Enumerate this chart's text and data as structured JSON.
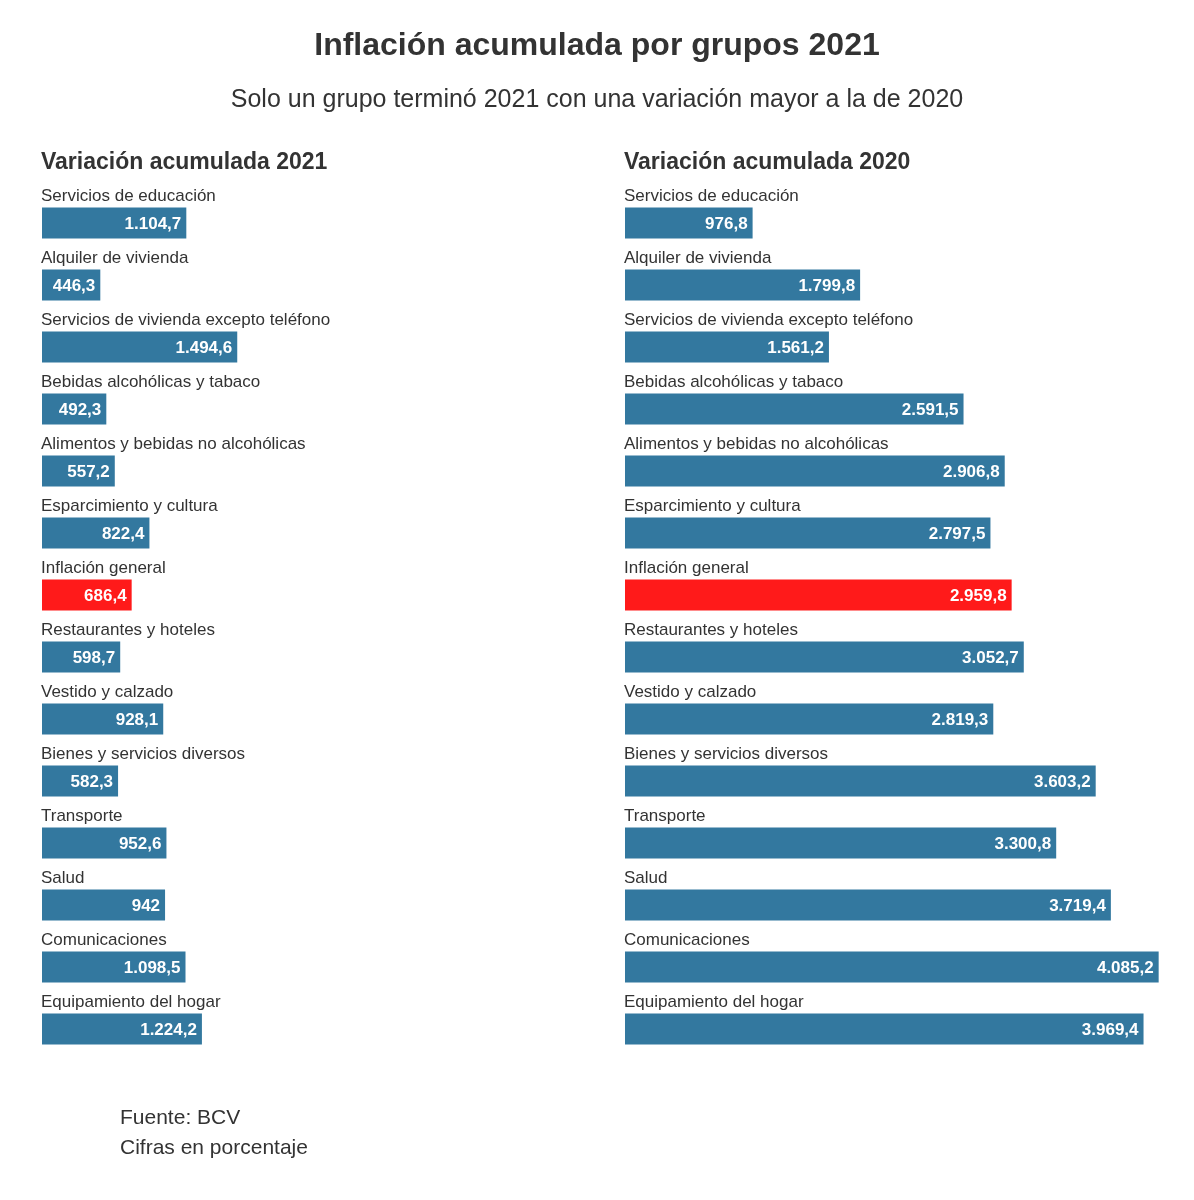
{
  "chart_data": [
    {
      "type": "other",
      "title": "Inflación acumulada por grupos 2021",
      "subtitle": "Solo un grupo terminó 2021 con una variación mayor a la de 2020",
      "annotations": [
        "Fuente: BCV",
        "Cifras en porcentaje"
      ]
    },
    {
      "type": "bar",
      "orientation": "horizontal",
      "title": "Variación acumulada 2021",
      "value_labels": [
        "1.104,7",
        "446,3",
        "1.494,6",
        "492,3",
        "557,2",
        "822,4",
        "686,4",
        "598,7",
        "928,1",
        "582,3",
        "952,6",
        "942",
        "1.098,5",
        "1.224,2"
      ],
      "categories": [
        "Servicios de educación",
        "Alquiler de vivienda",
        "Servicios de vivienda excepto teléfono",
        "Bebidas alcohólicas y tabaco",
        "Alimentos y bebidas no alcohólicas",
        "Esparcimiento y cultura",
        "Inflación general",
        "Restaurantes y hoteles",
        "Vestido y calzado",
        "Bienes y servicios diversos",
        "Transporte",
        "Salud",
        "Comunicaciones",
        "Equipamiento del hogar"
      ],
      "values": [
        1104.7,
        446.3,
        1494.6,
        492.3,
        557.2,
        822.4,
        686.4,
        598.7,
        928.1,
        582.3,
        952.6,
        942,
        1098.5,
        1224.2
      ],
      "colors": [
        "#33789f",
        "#33789f",
        "#33789f",
        "#33789f",
        "#33789f",
        "#33789f",
        "#ff1a1a",
        "#33789f",
        "#33789f",
        "#33789f",
        "#33789f",
        "#33789f",
        "#33789f",
        "#33789f"
      ]
    },
    {
      "type": "bar",
      "orientation": "horizontal",
      "title": "Variación acumulada 2020",
      "value_labels": [
        "976,8",
        "1.799,8",
        "1.561,2",
        "2.591,5",
        "2.906,8",
        "2.797,5",
        "2.959,8",
        "3.052,7",
        "2.819,3",
        "3.603,2",
        "3.300,8",
        "3.719,4",
        "4.085,2",
        "3.969,4"
      ],
      "categories": [
        "Servicios de educación",
        "Alquiler de vivienda",
        "Servicios de vivienda excepto teléfono",
        "Bebidas alcohólicas y tabaco",
        "Alimentos y bebidas no alcohólicas",
        "Esparcimiento y cultura",
        "Inflación general",
        "Restaurantes y hoteles",
        "Vestido y calzado",
        "Bienes y servicios diversos",
        "Transporte",
        "Salud",
        "Comunicaciones",
        "Equipamiento del hogar"
      ],
      "values": [
        976.8,
        1799.8,
        1561.2,
        2591.5,
        2906.8,
        2797.5,
        2959.8,
        3052.7,
        2819.3,
        3603.2,
        3300.8,
        3719.4,
        4085.2,
        3969.4
      ],
      "colors": [
        "#33789f",
        "#33789f",
        "#33789f",
        "#33789f",
        "#33789f",
        "#33789f",
        "#ff1a1a",
        "#33789f",
        "#33789f",
        "#33789f",
        "#33789f",
        "#33789f",
        "#33789f",
        "#33789f"
      ]
    }
  ]
}
